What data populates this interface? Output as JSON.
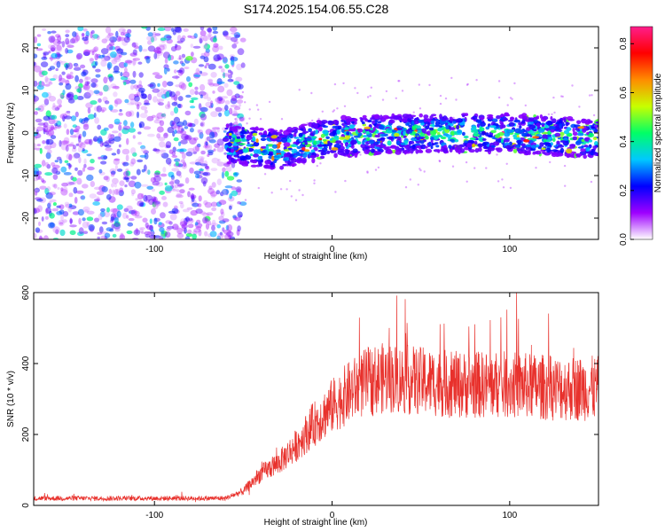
{
  "title": "S174.2025.154.06.55.C28",
  "chart_data": [
    {
      "type": "heatmap",
      "description_units": "Frequency (Hz) vs Height of straight line (km), colored by normalized spectral amplitude",
      "xlabel": "Height of straight line (km)",
      "ylabel": "Frequency (Hz)",
      "xlim": [
        -168,
        150
      ],
      "ylim": [
        -25,
        25
      ],
      "x_ticks": [
        -100,
        0,
        100
      ],
      "y_ticks": [
        -20,
        -10,
        0,
        10,
        20
      ],
      "noise_region_x": [
        -168,
        -55
      ],
      "signal_band_center_hz": [
        [
          -60,
          -2.5
        ],
        [
          -30,
          -4
        ],
        [
          0,
          -1
        ],
        [
          50,
          0
        ],
        [
          100,
          0
        ],
        [
          150,
          -1.5
        ]
      ],
      "colorbar": {
        "label": "Normalized spectral amplitude",
        "range": [
          0.0,
          0.87
        ],
        "ticks": [
          0.0,
          0.2,
          0.4,
          0.6,
          0.8
        ],
        "tick_labels": [
          "0.0",
          "0.2",
          "0.4",
          "0.6",
          "0.8"
        ],
        "colors": [
          "#ffffff",
          "#9e00ff",
          "#0000ff",
          "#00c8ff",
          "#00ff66",
          "#c8ff00",
          "#ff8c00",
          "#ff0000",
          "#ff1e8c"
        ]
      }
    },
    {
      "type": "line",
      "xlabel": "Height of straight line (km)",
      "ylabel": "SNR (10 * v/v)",
      "xlim": [
        -168,
        150
      ],
      "ylim": [
        0,
        600
      ],
      "x_ticks": [
        -100,
        0,
        100
      ],
      "y_ticks": [
        0,
        200,
        400,
        600
      ],
      "color": "#e8312c",
      "trend": [
        {
          "x": -168,
          "y": 20
        },
        {
          "x": -60,
          "y": 20
        },
        {
          "x": -50,
          "y": 40
        },
        {
          "x": -40,
          "y": 90
        },
        {
          "x": -30,
          "y": 120
        },
        {
          "x": -20,
          "y": 170
        },
        {
          "x": -10,
          "y": 230
        },
        {
          "x": 0,
          "y": 280
        },
        {
          "x": 10,
          "y": 320
        },
        {
          "x": 20,
          "y": 350
        },
        {
          "x": 30,
          "y": 360
        },
        {
          "x": 50,
          "y": 350
        },
        {
          "x": 70,
          "y": 340
        },
        {
          "x": 100,
          "y": 340
        },
        {
          "x": 130,
          "y": 330
        },
        {
          "x": 150,
          "y": 330
        }
      ]
    }
  ]
}
